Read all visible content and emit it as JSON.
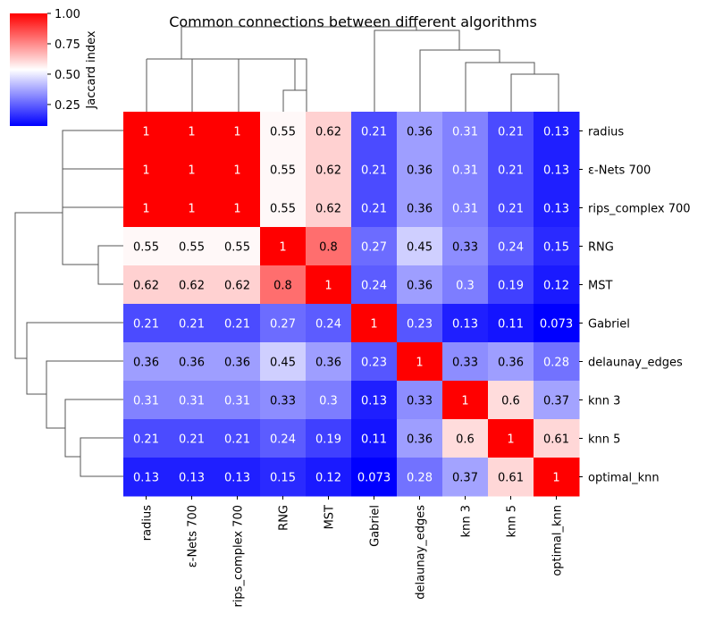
{
  "chart_data": {
    "type": "heatmap",
    "title": "Common connections between different algorithms",
    "labels": [
      "radius",
      "ε-Nets 700",
      "rips_complex 700",
      "RNG",
      "MST",
      "Gabriel",
      "delaunay_edges",
      "knn 3",
      "knn 5",
      "optimal_knn"
    ],
    "matrix": [
      [
        "1",
        "1",
        "1",
        "0.55",
        "0.62",
        "0.21",
        "0.36",
        "0.31",
        "0.21",
        "0.13"
      ],
      [
        "1",
        "1",
        "1",
        "0.55",
        "0.62",
        "0.21",
        "0.36",
        "0.31",
        "0.21",
        "0.13"
      ],
      [
        "1",
        "1",
        "1",
        "0.55",
        "0.62",
        "0.21",
        "0.36",
        "0.31",
        "0.21",
        "0.13"
      ],
      [
        "0.55",
        "0.55",
        "0.55",
        "1",
        "0.8",
        "0.27",
        "0.45",
        "0.33",
        "0.24",
        "0.15"
      ],
      [
        "0.62",
        "0.62",
        "0.62",
        "0.8",
        "1",
        "0.24",
        "0.36",
        "0.3",
        "0.19",
        "0.12"
      ],
      [
        "0.21",
        "0.21",
        "0.21",
        "0.27",
        "0.24",
        "1",
        "0.23",
        "0.13",
        "0.11",
        "0.073"
      ],
      [
        "0.36",
        "0.36",
        "0.36",
        "0.45",
        "0.36",
        "0.23",
        "1",
        "0.33",
        "0.36",
        "0.28"
      ],
      [
        "0.31",
        "0.31",
        "0.31",
        "0.33",
        "0.3",
        "0.13",
        "0.33",
        "1",
        "0.6",
        "0.37"
      ],
      [
        "0.21",
        "0.21",
        "0.21",
        "0.24",
        "0.19",
        "0.11",
        "0.36",
        "0.6",
        "1",
        "0.61"
      ],
      [
        "0.13",
        "0.13",
        "0.13",
        "0.15",
        "0.12",
        "0.073",
        "0.28",
        "0.37",
        "0.61",
        "1"
      ]
    ],
    "colorbar": {
      "label": "Jaccard index",
      "range": [
        0.073,
        1.0
      ],
      "ticks": [
        "0.25",
        "0.50",
        "0.75",
        "1.00"
      ],
      "colormap": "bwr"
    },
    "dendrogram": "hierarchical clustering on rows and columns"
  }
}
